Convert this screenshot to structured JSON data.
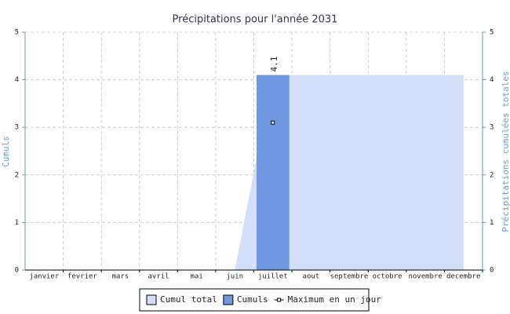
{
  "chart_data": {
    "type": "bar",
    "title": "Précipitations pour l'année 2031",
    "y_label": "Cumuls",
    "y2_label": "Précipitations cumulées totales",
    "categories": [
      "janvier",
      "fevrier",
      "mars",
      "avril",
      "mai",
      "juin",
      "juillet",
      "aout",
      "septembre",
      "octobre",
      "novembre",
      "decembre"
    ],
    "series": [
      {
        "name": "Cumul total",
        "type": "area",
        "color": "#d3dff8",
        "axis": "y2",
        "values": [
          0,
          0,
          0,
          0,
          0,
          0,
          4.1,
          4.1,
          4.1,
          4.1,
          4.1,
          4.1
        ]
      },
      {
        "name": "Cumuls",
        "type": "bar",
        "color": "#6f98e0",
        "values": [
          null,
          null,
          null,
          null,
          null,
          null,
          4.1,
          null,
          null,
          null,
          null,
          null
        ]
      },
      {
        "name": "Maximum en un jour",
        "type": "line",
        "color": "#000000",
        "values": [
          null,
          null,
          null,
          null,
          null,
          null,
          3.1,
          null,
          null,
          null,
          null,
          null
        ]
      }
    ],
    "ylim": [
      0,
      5
    ],
    "yticks": [
      0,
      1,
      2,
      3,
      4,
      5
    ],
    "y2lim": [
      0,
      5
    ],
    "y2ticks": [
      0,
      1,
      2,
      3,
      4,
      5
    ],
    "grid": true,
    "legend": "bottom"
  }
}
